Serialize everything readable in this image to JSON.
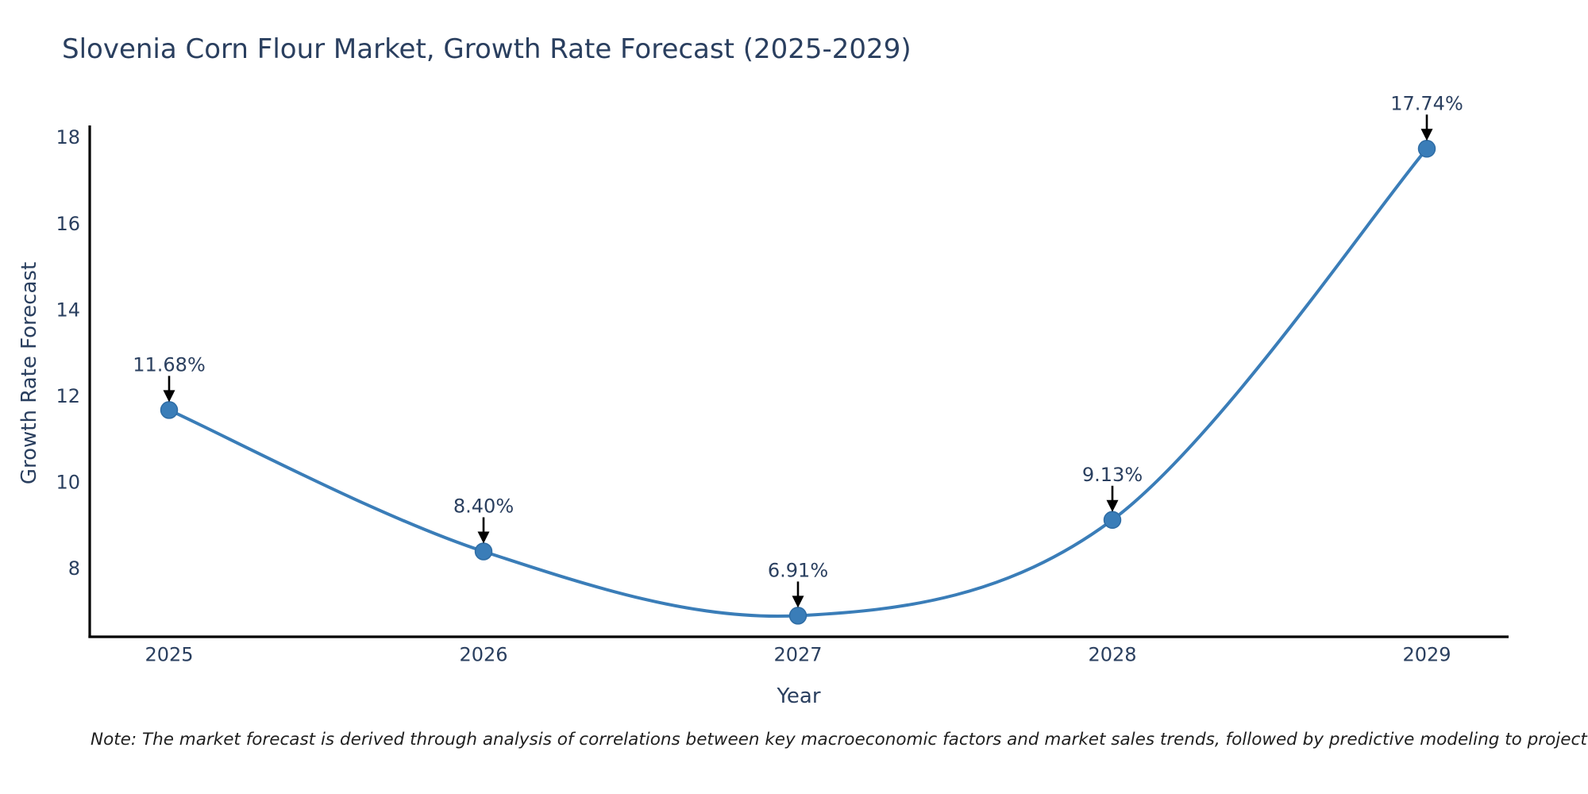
{
  "title": "Slovenia Corn Flour Market, Growth Rate Forecast (2025-2029)",
  "note": "Note: The market forecast is derived through analysis of correlations between key macroeconomic factors and market sales trends, followed by predictive modeling to project future sales",
  "chart_data": {
    "type": "line",
    "title": "Slovenia Corn Flour Market, Growth Rate Forecast (2025-2029)",
    "xlabel": "Year",
    "ylabel": "Growth Rate Forecast",
    "categories": [
      "2025",
      "2026",
      "2027",
      "2028",
      "2029"
    ],
    "series": [
      {
        "name": "Growth Rate Forecast",
        "values": [
          11.68,
          8.4,
          6.91,
          9.13,
          17.74
        ]
      }
    ],
    "point_labels": [
      "11.68%",
      "8.40%",
      "6.91%",
      "9.13%",
      "17.74%"
    ],
    "yticks": [
      "8",
      "10",
      "12",
      "14",
      "16",
      "18"
    ],
    "ylim": [
      6.42,
      18.28
    ],
    "line_shape": "spline",
    "grid": false,
    "legend_position": "none",
    "colors": {
      "line": "#3a7db8",
      "marker": "#3a7db8",
      "marker_edge": "#2e6ca4",
      "annotation_arrow": "#000000",
      "axis": "#000000",
      "text": "#2a3f5f",
      "note_text": "#1f1f1f"
    }
  }
}
